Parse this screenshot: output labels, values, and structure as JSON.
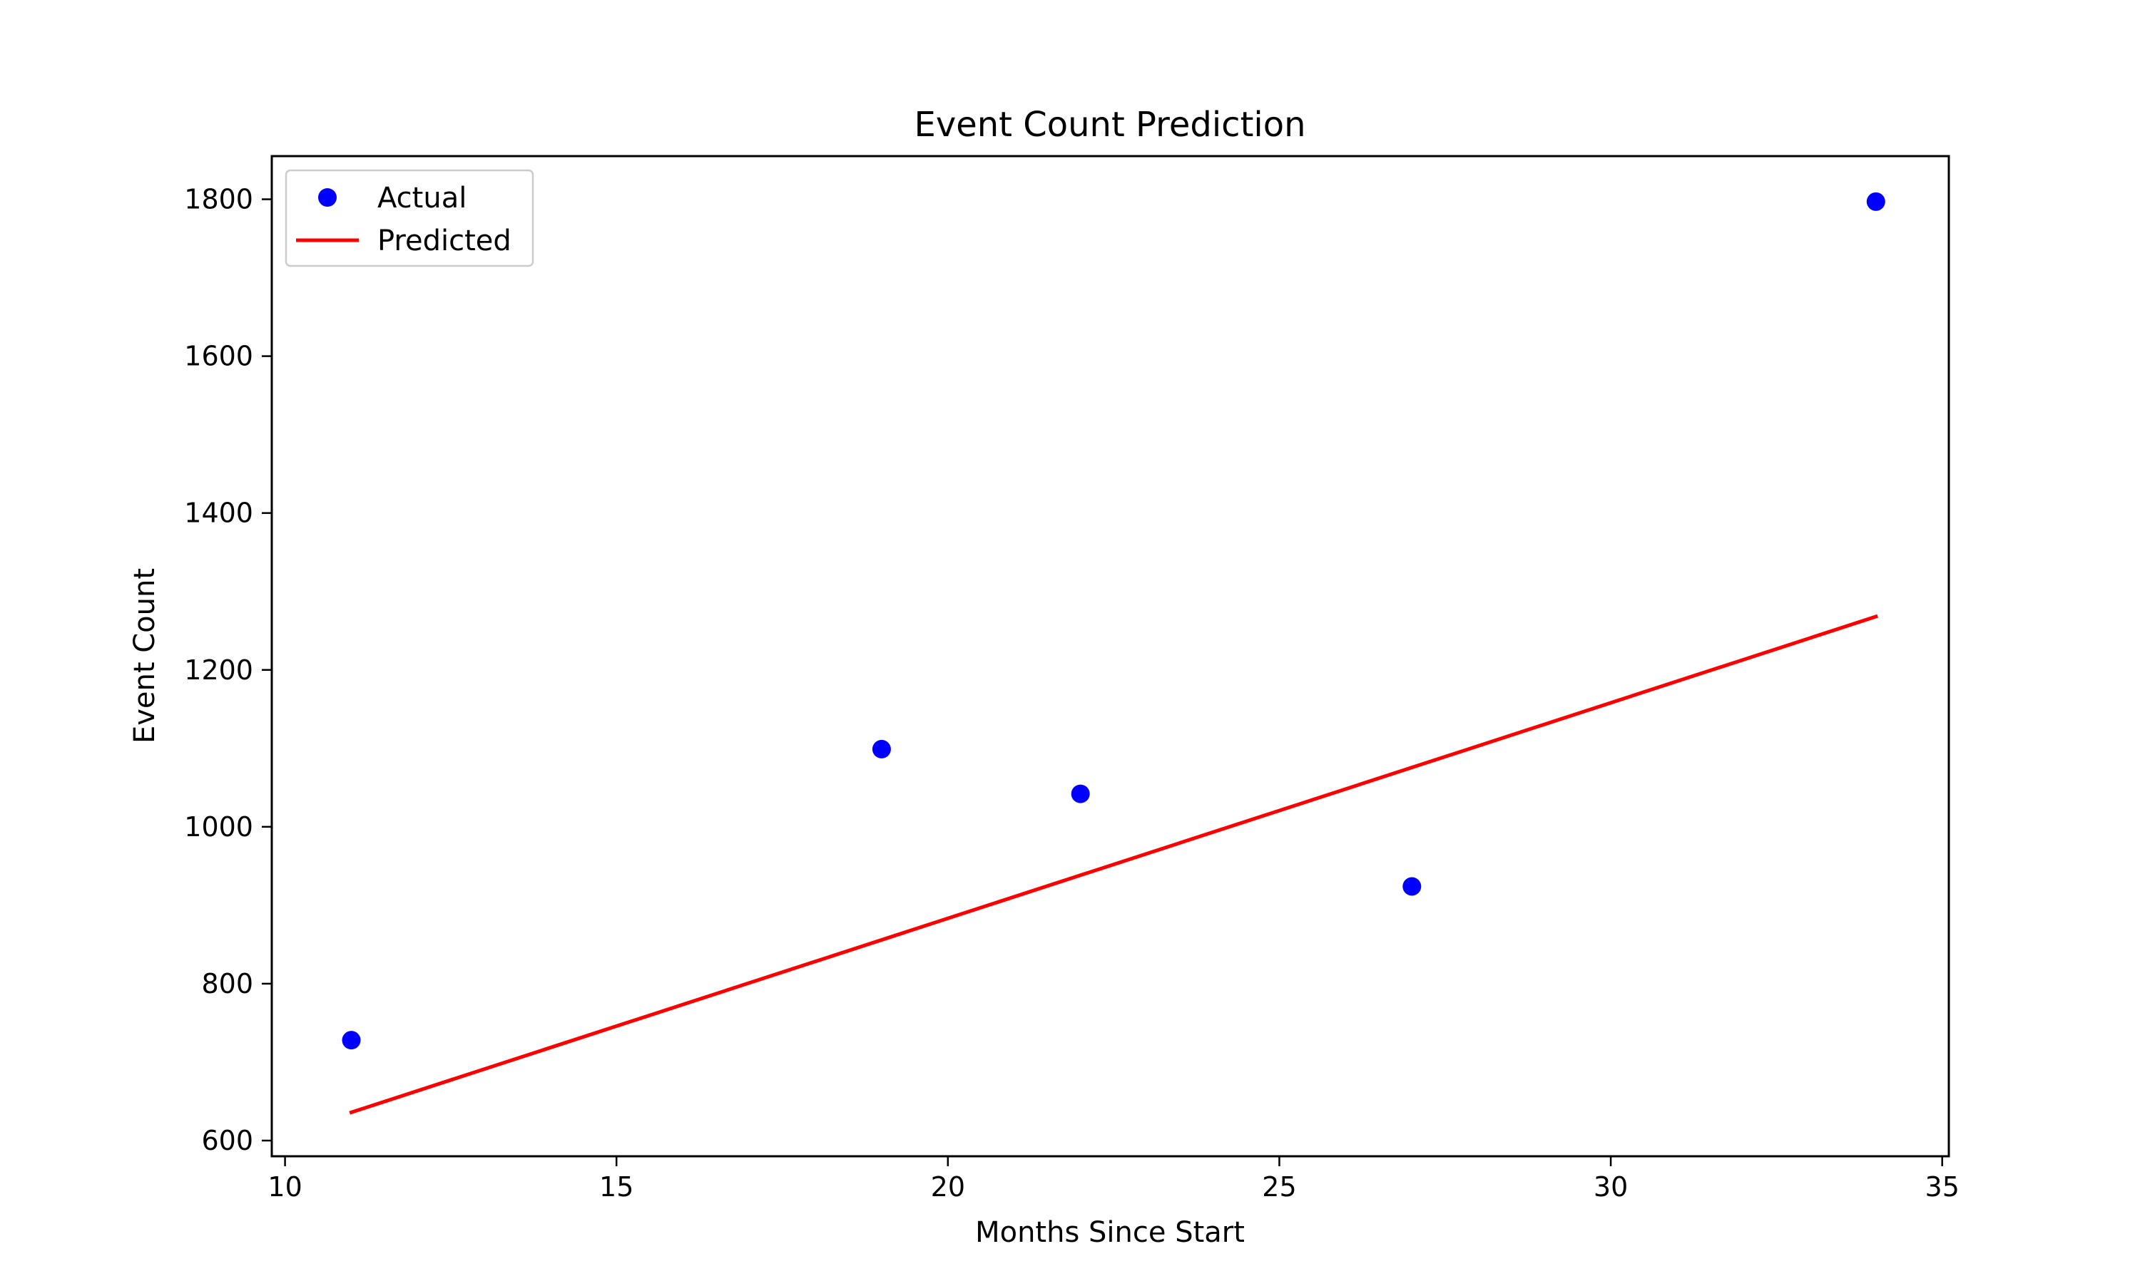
{
  "chart_data": {
    "type": "scatter",
    "title": "Event Count Prediction",
    "xlabel": "Months Since Start",
    "ylabel": "Event Count",
    "xlim": [
      9.8,
      35.1
    ],
    "ylim": [
      580,
      1855
    ],
    "xticks": [
      10,
      15,
      20,
      25,
      30,
      35
    ],
    "yticks": [
      600,
      800,
      1000,
      1200,
      1400,
      1600,
      1800
    ],
    "grid": false,
    "legend_position": "upper left",
    "series": [
      {
        "name": "Actual",
        "kind": "scatter",
        "color": "#0000ff",
        "points": [
          {
            "x": 11,
            "y": 728
          },
          {
            "x": 19,
            "y": 1099
          },
          {
            "x": 22,
            "y": 1042
          },
          {
            "x": 27,
            "y": 924
          },
          {
            "x": 34,
            "y": 1797
          }
        ]
      },
      {
        "name": "Predicted",
        "kind": "line",
        "color": "#ff0000",
        "points": [
          {
            "x": 11,
            "y": 636
          },
          {
            "x": 34,
            "y": 1268
          }
        ]
      }
    ]
  }
}
